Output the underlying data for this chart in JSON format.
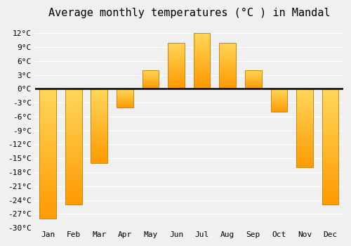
{
  "months": [
    "Jan",
    "Feb",
    "Mar",
    "Apr",
    "May",
    "Jun",
    "Jul",
    "Aug",
    "Sep",
    "Oct",
    "Nov",
    "Dec"
  ],
  "values": [
    -28,
    -25,
    -16,
    -4,
    4,
    10,
    12,
    10,
    4,
    -5,
    -17,
    -25
  ],
  "bar_color_light": [
    1.0,
    0.84,
    0.35
  ],
  "bar_color_dark": [
    1.0,
    0.6,
    0.0
  ],
  "bar_edge_color": "#CC8800",
  "title": "Average monthly temperatures (°C ) in Mandal",
  "ylim": [
    -30,
    14
  ],
  "yticks": [
    -30,
    -27,
    -24,
    -21,
    -18,
    -15,
    -12,
    -9,
    -6,
    -3,
    0,
    3,
    6,
    9,
    12
  ],
  "background_color": "#f0f0f0",
  "grid_color": "#ffffff",
  "title_fontsize": 11,
  "tick_fontsize": 8,
  "zero_line_color": "#000000",
  "bar_width": 0.65,
  "gradient_steps": 30
}
